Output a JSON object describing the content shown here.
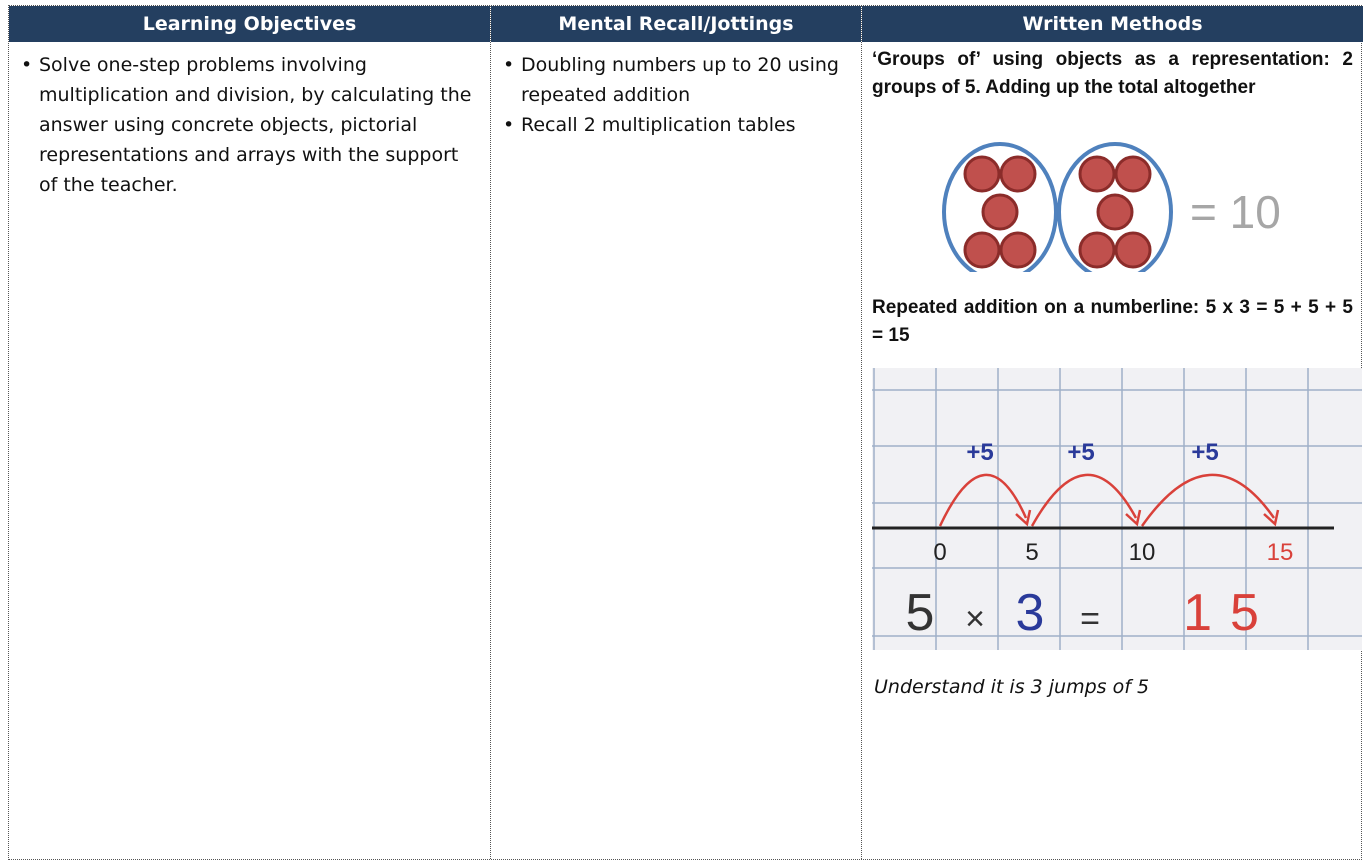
{
  "table": {
    "headers": [
      "Learning Objectives",
      "Mental Recall/Jottings",
      "Written Methods"
    ],
    "learning_objectives": [
      "Solve one-step problems involving multiplication and division, by calculating the answer using concrete objects, pictorial representations and arrays with the support of the teacher."
    ],
    "mental_recall": [
      "Doubling numbers up to 20 using repeated addition",
      "Recall 2 multiplication tables"
    ],
    "written_methods": {
      "heading1": "‘Groups of’ using objects as a representation: 2 groups of 5. Adding up the total altogether",
      "figure1": {
        "equation": "= 10"
      },
      "heading2": "Repeated addition on a numberline: 5 x 3 = 5 + 5 + 5 = 15",
      "figure2": {
        "jumps": [
          "+5",
          "+5",
          "+5"
        ],
        "marks": [
          "0",
          "5",
          "10",
          "15"
        ],
        "equation": [
          "5",
          "×",
          "3",
          "=",
          "15"
        ]
      },
      "note": "Understand it is 3 jumps of 5"
    }
  }
}
